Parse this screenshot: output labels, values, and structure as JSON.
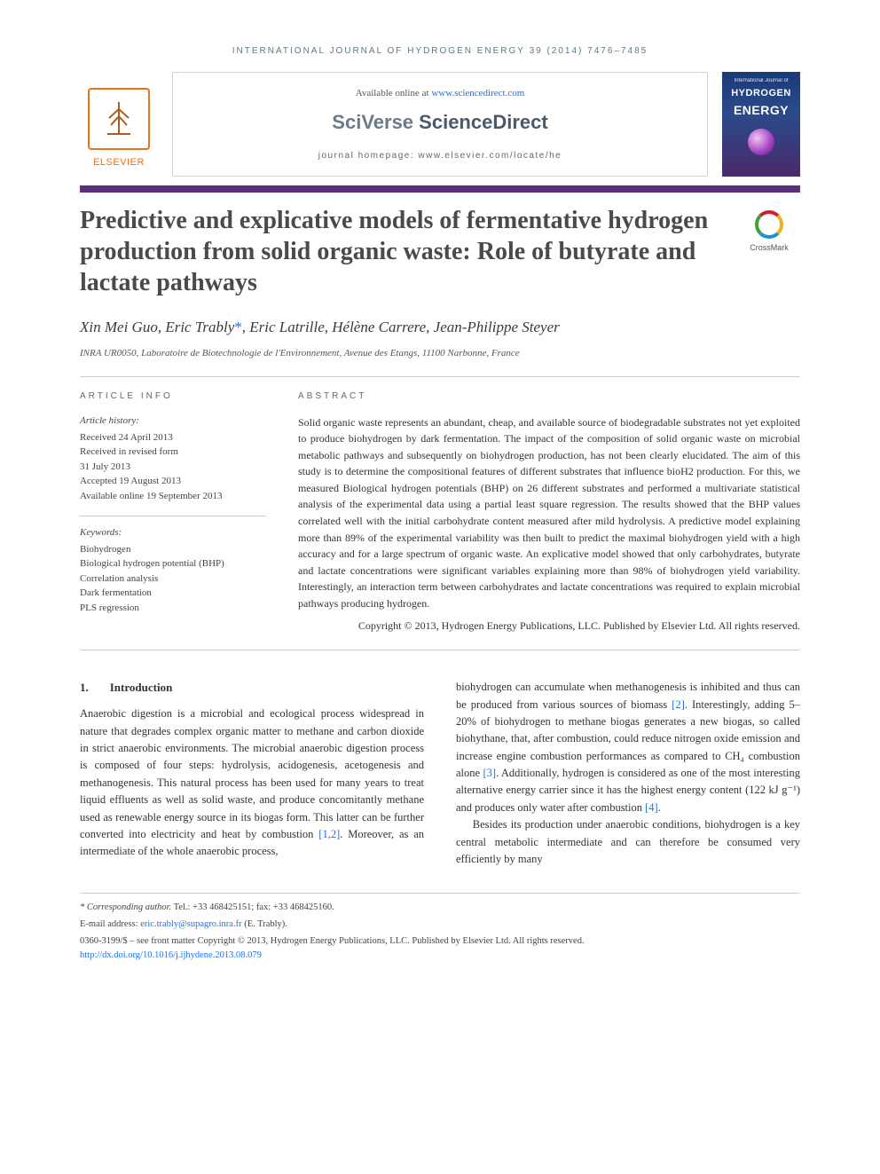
{
  "running_head": "INTERNATIONAL JOURNAL OF HYDROGEN ENERGY 39 (2014) 7476–7485",
  "header": {
    "elsevier_label": "ELSEVIER",
    "available_prefix": "Available online at ",
    "available_link": "www.sciencedirect.com",
    "sd_brand_1": "SciVerse ",
    "sd_brand_2": "ScienceDirect",
    "homepage_prefix": "journal homepage: ",
    "homepage_url": "www.elsevier.com/locate/he",
    "cover_line1": "International Journal of",
    "cover_line2": "HYDROGEN",
    "cover_line3": "ENERGY",
    "crossmark_label": "CrossMark"
  },
  "title": "Predictive and explicative models of fermentative hydrogen production from solid organic waste: Role of butyrate and lactate pathways",
  "authors": "Xin Mei Guo, Eric Trably*, Eric Latrille, Hélène Carrere, Jean-Philippe Steyer",
  "affiliation": "INRA UR0050, Laboratoire de Biotechnologie de l'Environnement, Avenue des Etangs, 11100 Narbonne, France",
  "article_info": {
    "heading": "ARTICLE INFO",
    "history_head": "Article history:",
    "received": "Received 24 April 2013",
    "revised_l1": "Received in revised form",
    "revised_l2": "31 July 2013",
    "accepted": "Accepted 19 August 2013",
    "online": "Available online 19 September 2013",
    "keywords_head": "Keywords:",
    "kw": [
      "Biohydrogen",
      "Biological hydrogen potential (BHP)",
      "Correlation analysis",
      "Dark fermentation",
      "PLS regression"
    ]
  },
  "abstract": {
    "heading": "ABSTRACT",
    "text": "Solid organic waste represents an abundant, cheap, and available source of biodegradable substrates not yet exploited to produce biohydrogen by dark fermentation. The impact of the composition of solid organic waste on microbial metabolic pathways and subsequently on biohydrogen production, has not been clearly elucidated. The aim of this study is to determine the compositional features of different substrates that influence bioH2 production. For this, we measured Biological hydrogen potentials (BHP) on 26 different substrates and performed a multivariate statistical analysis of the experimental data using a partial least square regression. The results showed that the BHP values correlated well with the initial carbohydrate content measured after mild hydrolysis. A predictive model explaining more than 89% of the experimental variability was then built to predict the maximal biohydrogen yield with a high accuracy and for a large spectrum of organic waste. An explicative model showed that only carbohydrates, butyrate and lactate concentrations were significant variables explaining more than 98% of biohydrogen yield variability. Interestingly, an interaction term between carbohydrates and lactate concentrations was required to explain microbial pathways producing hydrogen.",
    "copyright": "Copyright © 2013, Hydrogen Energy Publications, LLC. Published by Elsevier Ltd. All rights reserved."
  },
  "intro": {
    "num": "1.",
    "label": "Introduction",
    "col1": "Anaerobic digestion is a microbial and ecological process widespread in nature that degrades complex organic matter to methane and carbon dioxide in strict anaerobic environments. The microbial anaerobic digestion process is composed of four steps: hydrolysis, acidogenesis, acetogenesis and methanogenesis. This natural process has been used for many years to treat liquid effluents as well as solid waste, and produce concomitantly methane used as renewable energy source in its biogas form. This latter can be further converted into electricity and heat by combustion ",
    "col1_ref": "[1,2]",
    "col1_tail": ". Moreover, as an intermediate of the whole anaerobic process,",
    "col2_a": "biohydrogen can accumulate when methanogenesis is inhibited and thus can be produced from various sources of biomass ",
    "col2_ref1": "[2]",
    "col2_b": ". Interestingly, adding 5–20% of biohydrogen to methane biogas generates a new biogas, so called biohythane, that, after combustion, could reduce nitrogen oxide emission and increase engine combustion performances as compared to CH₄ combustion alone ",
    "col2_ref2": "[3]",
    "col2_c": ". Additionally, hydrogen is considered as one of the most interesting alternative energy carrier since it has the highest energy content (122 kJ g⁻¹) and produces only water after combustion ",
    "col2_ref3": "[4]",
    "col2_d": ".",
    "col2_p2": "Besides its production under anaerobic conditions, biohydrogen is a key central metabolic intermediate and can therefore be consumed very efficiently by many"
  },
  "footer": {
    "corr_label": "* Corresponding author.",
    "corr_contact": " Tel.: +33 468425151; fax: +33 468425160.",
    "email_label": "E-mail address: ",
    "email": "eric.trably@supagro.inra.fr",
    "email_tail": " (E. Trably).",
    "issn_line": "0360-3199/$ – see front matter Copyright © 2013, Hydrogen Energy Publications, LLC. Published by Elsevier Ltd. All rights reserved.",
    "doi": "http://dx.doi.org/10.1016/j.ijhydene.2013.08.079"
  },
  "colors": {
    "purple_bar": "#5a2f7a",
    "link": "#1a73e8",
    "elsevier_orange": "#e9711c",
    "running_head": "#5a7a8a"
  }
}
